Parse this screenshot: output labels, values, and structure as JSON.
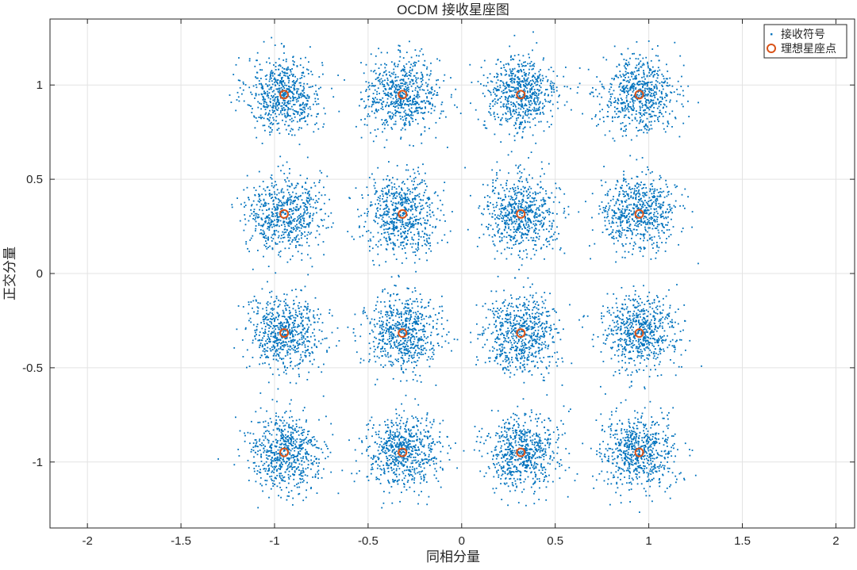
{
  "chart_data": {
    "type": "scatter",
    "title": "OCDM 接收星座图",
    "xlabel": "同相分量",
    "ylabel": "正交分量",
    "xlim": [
      -2.2,
      2.1
    ],
    "ylim": [
      -1.35,
      1.35
    ],
    "xticks": [
      -2,
      -1.5,
      -1,
      -0.5,
      0,
      0.5,
      1,
      1.5,
      2
    ],
    "xtick_labels": [
      "-2",
      "-1.5",
      "-1",
      "-0.5",
      "0",
      "0.5",
      "1",
      "1.5",
      "2"
    ],
    "yticks": [
      -1,
      -0.5,
      0,
      0.5,
      1
    ],
    "ytick_labels": [
      "-1",
      "-0.5",
      "0",
      "0.5",
      "1"
    ],
    "grid": true,
    "legend_position": "top-right",
    "series": [
      {
        "name": "接收符号",
        "marker": "dot",
        "color": "#0072BD",
        "cluster_centers": [
          [
            -0.949,
            0.949
          ],
          [
            -0.316,
            0.949
          ],
          [
            0.316,
            0.949
          ],
          [
            0.949,
            0.949
          ],
          [
            -0.949,
            0.316
          ],
          [
            -0.316,
            0.316
          ],
          [
            0.316,
            0.316
          ],
          [
            0.949,
            0.316
          ],
          [
            -0.949,
            -0.316
          ],
          [
            -0.316,
            -0.316
          ],
          [
            0.316,
            -0.316
          ],
          [
            0.949,
            -0.316
          ],
          [
            -0.949,
            -0.949
          ],
          [
            -0.316,
            -0.949
          ],
          [
            0.316,
            -0.949
          ],
          [
            0.949,
            -0.949
          ]
        ],
        "cluster_spread": 0.1
      },
      {
        "name": "理想星座点",
        "marker": "circle",
        "color": "#D95319",
        "points": [
          [
            -0.949,
            0.949
          ],
          [
            -0.316,
            0.949
          ],
          [
            0.316,
            0.949
          ],
          [
            0.949,
            0.949
          ],
          [
            -0.949,
            0.316
          ],
          [
            -0.316,
            0.316
          ],
          [
            0.316,
            0.316
          ],
          [
            0.949,
            0.316
          ],
          [
            -0.949,
            -0.316
          ],
          [
            -0.316,
            -0.316
          ],
          [
            0.316,
            -0.316
          ],
          [
            0.949,
            -0.316
          ],
          [
            -0.949,
            -0.949
          ],
          [
            -0.316,
            -0.949
          ],
          [
            0.316,
            -0.949
          ],
          [
            0.949,
            -0.949
          ]
        ]
      }
    ]
  }
}
